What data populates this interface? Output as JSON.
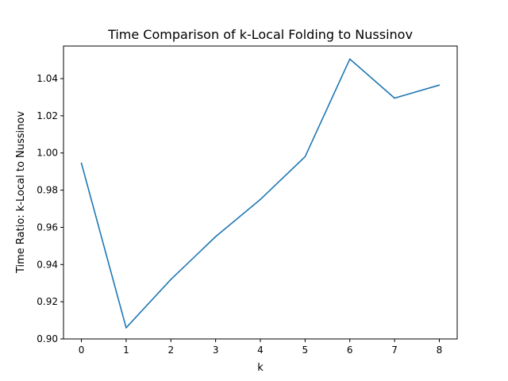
{
  "chart_data": {
    "type": "line",
    "title": "Time Comparison of k-Local Folding to Nussinov",
    "xlabel": "k",
    "ylabel": "Time Ratio: k-Local to Nussinov",
    "x": [
      0,
      1,
      2,
      3,
      4,
      5,
      6,
      7,
      8
    ],
    "series": [
      {
        "values": [
          0.9945,
          0.906,
          0.932,
          0.955,
          0.975,
          0.998,
          1.0505,
          1.0295,
          1.0365
        ],
        "color": "#1f77b4"
      }
    ],
    "xlim": [
      -0.4,
      8.4
    ],
    "ylim": [
      0.9,
      1.0575
    ],
    "xticks": [
      0,
      1,
      2,
      3,
      4,
      5,
      6,
      7,
      8
    ],
    "xtick_labels": [
      "0",
      "1",
      "2",
      "3",
      "4",
      "5",
      "6",
      "7",
      "8"
    ],
    "yticks": [
      0.9,
      0.92,
      0.94,
      0.96,
      0.98,
      1.0,
      1.02,
      1.04
    ],
    "ytick_labels": [
      "0.90",
      "0.92",
      "0.94",
      "0.96",
      "0.98",
      "1.00",
      "1.02",
      "1.04"
    ],
    "grid": false,
    "legend": false
  }
}
